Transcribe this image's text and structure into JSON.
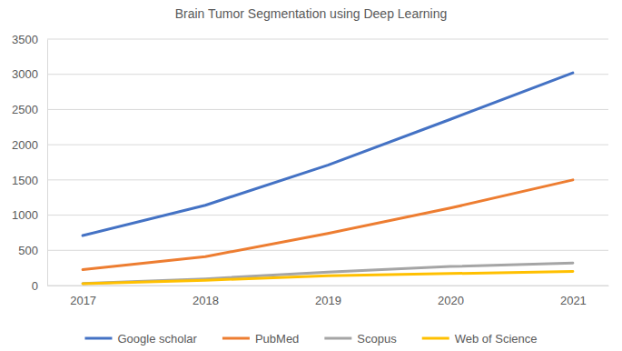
{
  "chart_data": {
    "type": "line",
    "title": "Brain Tumor Segmentation using Deep Learning",
    "categories": [
      "2017",
      "2018",
      "2019",
      "2020",
      "2021"
    ],
    "series": [
      {
        "name": "Google scholar",
        "color": "#4472c4",
        "values": [
          710,
          1140,
          1710,
          2360,
          3020
        ]
      },
      {
        "name": "PubMed",
        "color": "#ed7d31",
        "values": [
          225,
          410,
          740,
          1100,
          1500
        ]
      },
      {
        "name": "Scopus",
        "color": "#a5a5a5",
        "values": [
          30,
          95,
          190,
          270,
          320
        ]
      },
      {
        "name": "Web of Science",
        "color": "#ffc000",
        "values": [
          25,
          75,
          140,
          170,
          200
        ]
      }
    ],
    "ylim": [
      0,
      3500
    ],
    "yticks": [
      0,
      500,
      1000,
      1500,
      2000,
      2500,
      3000,
      3500
    ],
    "grid": true,
    "legend": "bottom"
  }
}
